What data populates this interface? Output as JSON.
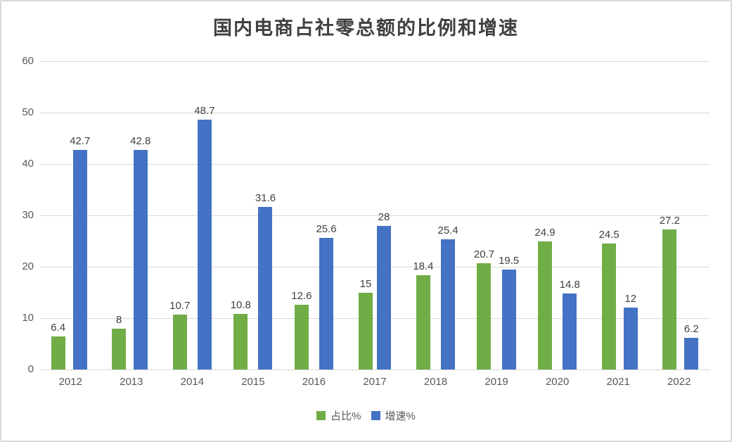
{
  "chart_data": {
    "type": "bar",
    "title": "国内电商占社零总额的比例和增速",
    "categories": [
      "2012",
      "2013",
      "2014",
      "2015",
      "2016",
      "2017",
      "2018",
      "2019",
      "2020",
      "2021",
      "2022"
    ],
    "series": [
      {
        "name": "占比%",
        "color": "#70ad47",
        "values": [
          6.4,
          8,
          10.7,
          10.8,
          12.6,
          15,
          18.4,
          20.7,
          24.9,
          24.5,
          27.2
        ]
      },
      {
        "name": "增速%",
        "color": "#4472c4",
        "values": [
          42.7,
          42.8,
          48.7,
          31.6,
          25.6,
          28,
          25.4,
          19.5,
          14.8,
          12,
          6.2
        ]
      }
    ],
    "xlabel": "",
    "ylabel": "",
    "ylim": [
      0,
      60
    ],
    "yticks": [
      0,
      10,
      20,
      30,
      40,
      50,
      60
    ],
    "grid": true,
    "data_labels": true,
    "legend_position": "bottom"
  },
  "colors": {
    "grid": "#d9d9d9",
    "axis_text": "#595959",
    "data_label": "#404040",
    "title": "#404040",
    "border": "#d9d9d9",
    "background": "#ffffff"
  }
}
